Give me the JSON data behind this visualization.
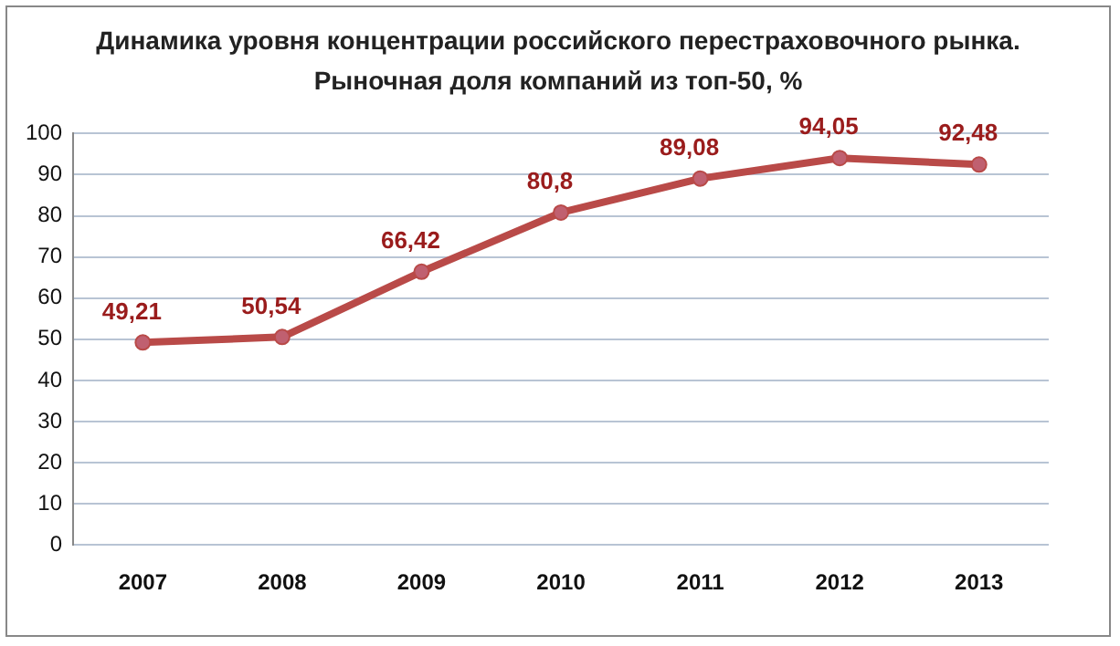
{
  "chart_data": {
    "type": "line",
    "title": "Динамика уровня концентрации российского перестраховочного рынка.",
    "subtitle": "Рыночная доля компаний из топ-50, %",
    "categories": [
      "2007",
      "2008",
      "2009",
      "2010",
      "2011",
      "2012",
      "2013"
    ],
    "series": [
      {
        "color": "#b94a48",
        "values": [
          49.21,
          50.54,
          66.42,
          80.8,
          89.08,
          94.05,
          92.48
        ],
        "value_labels": [
          "49,21",
          "50,54",
          "66,42",
          "80,8",
          "89,08",
          "94,05",
          "92,48"
        ]
      }
    ],
    "ylim": [
      0,
      100
    ],
    "yticks": [
      0,
      10,
      20,
      30,
      40,
      50,
      60,
      70,
      80,
      90,
      100
    ],
    "grid": "y",
    "legend": false,
    "marker": "circle",
    "line_style": "solid"
  }
}
